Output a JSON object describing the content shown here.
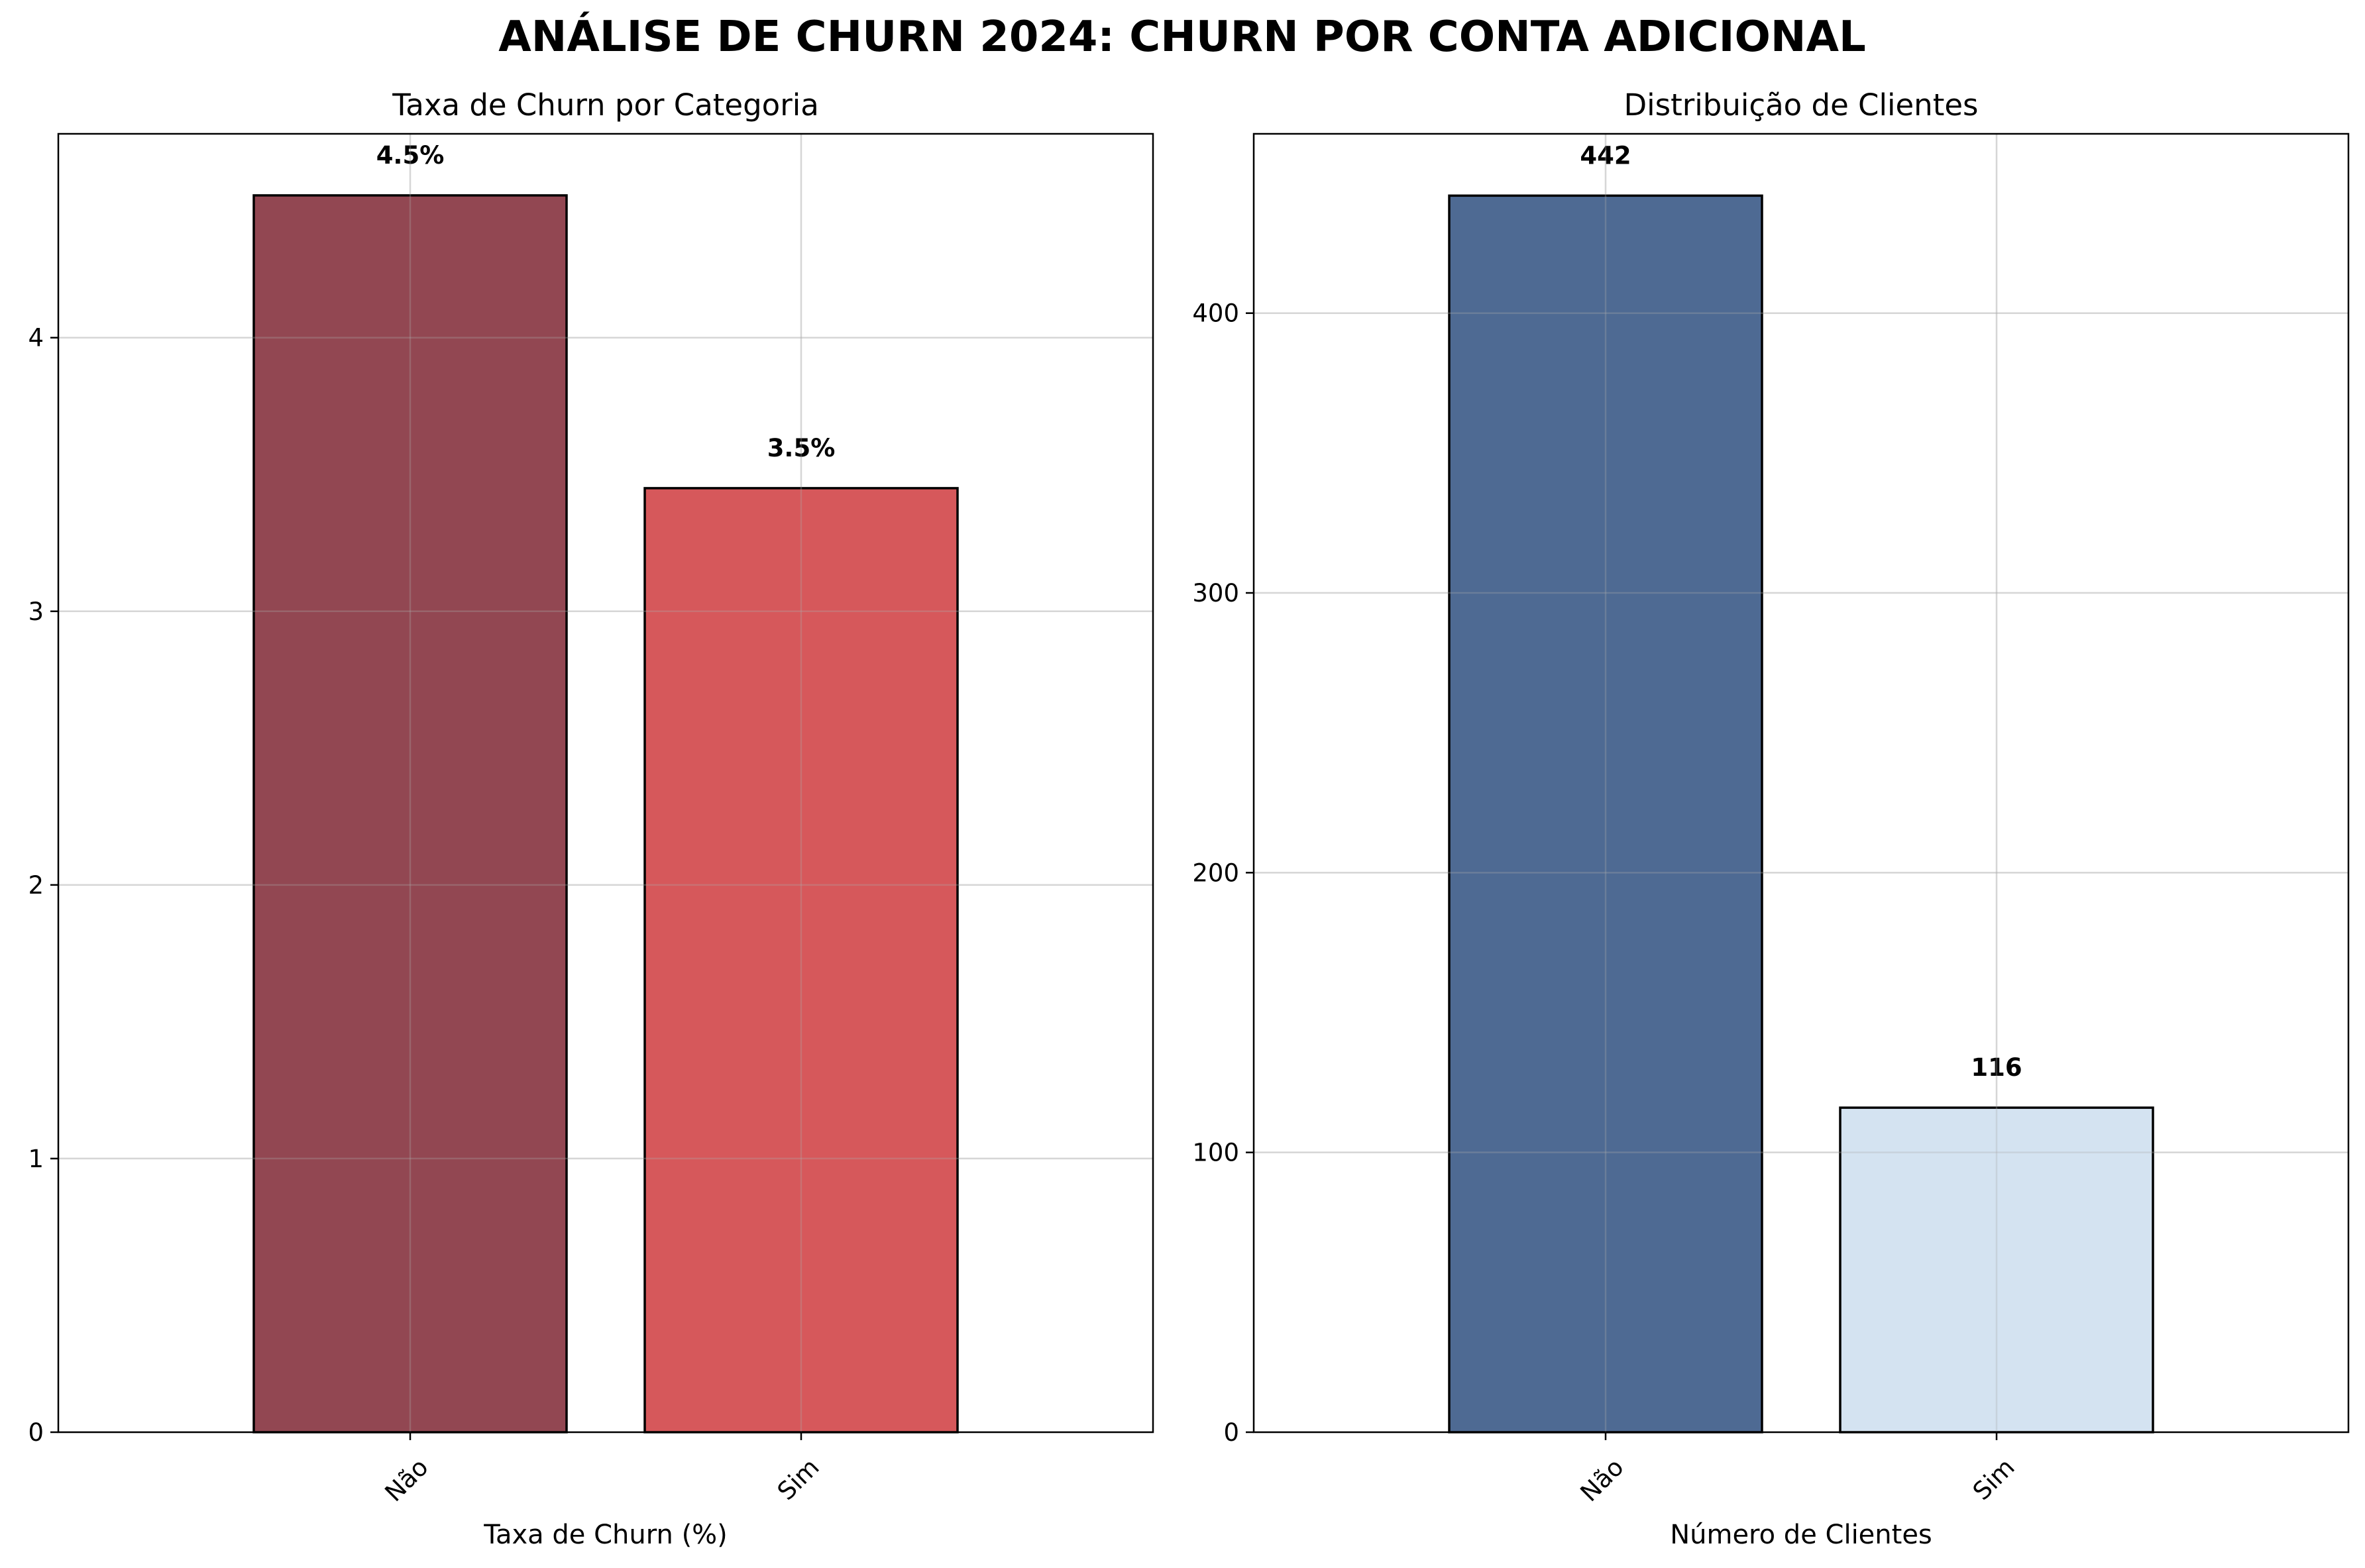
{
  "suptitle": "ANÁLISE DE CHURN 2024: CHURN POR CONTA ADICIONAL",
  "chart_data": [
    {
      "type": "bar",
      "title": "Taxa de Churn por Categoria",
      "xlabel": "Taxa de Churn (%)",
      "ylabel": "",
      "categories": [
        "Não",
        "Sim"
      ],
      "values": [
        4.52,
        3.45
      ],
      "data_labels": [
        "4.5%",
        "3.5%"
      ],
      "bar_colors": [
        "#86333f",
        "#d24649"
      ],
      "yticks": [
        0,
        1,
        2,
        3,
        4
      ],
      "ytick_labels": [
        "0",
        "1",
        "2",
        "3",
        "4"
      ],
      "ylim": [
        0,
        4.745
      ],
      "grid": true
    },
    {
      "type": "bar",
      "title": "Distribuição de Clientes",
      "xlabel": "Número de Clientes",
      "ylabel": "",
      "categories": [
        "Não",
        "Sim"
      ],
      "values": [
        442,
        116
      ],
      "data_labels": [
        "442",
        "116"
      ],
      "bar_colors": [
        "#3b5a87",
        "#cfe0f0"
      ],
      "yticks": [
        0,
        100,
        200,
        300,
        400
      ],
      "ytick_labels": [
        "0",
        "100",
        "200",
        "300",
        "400"
      ],
      "ylim": [
        0,
        464.1
      ],
      "grid": true
    }
  ]
}
